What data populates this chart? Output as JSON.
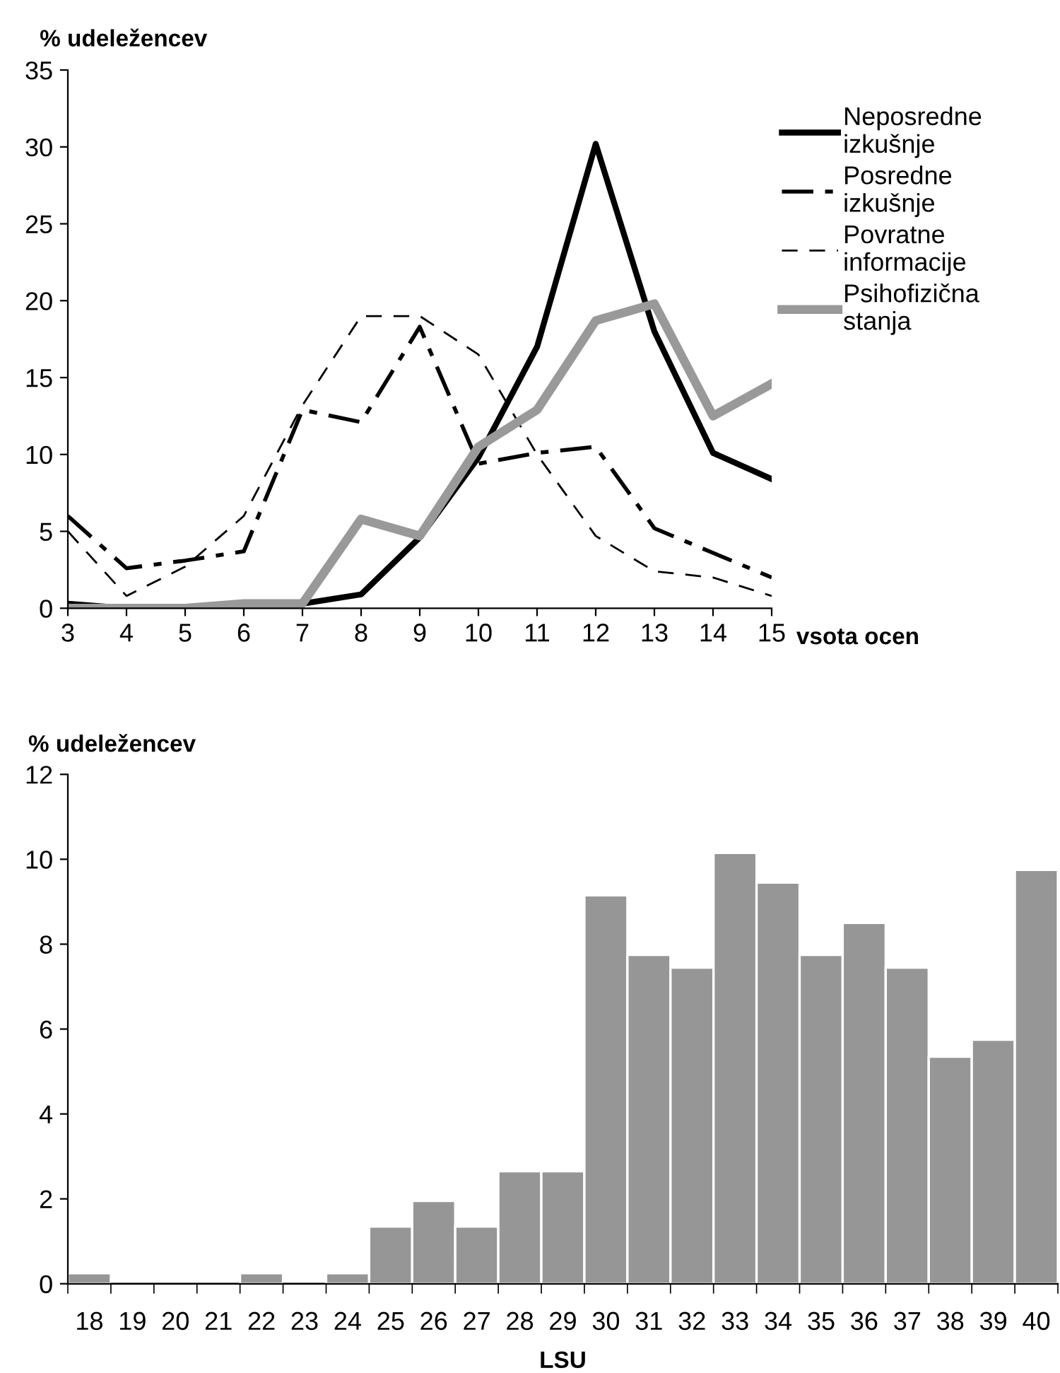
{
  "chart_data": [
    {
      "type": "line",
      "ylabel": "% udeležencev",
      "xlabel": "vsota ocen",
      "x": [
        3,
        4,
        5,
        6,
        7,
        8,
        9,
        10,
        11,
        12,
        13,
        14,
        15
      ],
      "xlim": [
        3,
        15
      ],
      "xticks": [
        3,
        4,
        5,
        6,
        7,
        8,
        9,
        10,
        11,
        12,
        13,
        14,
        15
      ],
      "ylim": [
        0,
        35
      ],
      "yticks": [
        0,
        5,
        10,
        15,
        20,
        25,
        30,
        35
      ],
      "grid": false,
      "legend": "right",
      "marker": "none",
      "series": [
        {
          "name": "Neposredne izkušnje",
          "color": "#000000",
          "line_style": "solid",
          "values": [
            0.3,
            0,
            0,
            0,
            0.3,
            0.9,
            4.6,
            9.8,
            17,
            30.2,
            18,
            10.1,
            8.4
          ]
        },
        {
          "name": "Posredne izkušnje",
          "color": "#000000",
          "line_style": "dashdot",
          "values": [
            6,
            2.6,
            3.1,
            3.7,
            12.9,
            12.1,
            18.3,
            9.4,
            10.1,
            10.5,
            5.2,
            3.6,
            2.0
          ]
        },
        {
          "name": "Povratne informacije",
          "color": "#000000",
          "line_style": "dashed",
          "values": [
            5.0,
            0.8,
            2.7,
            6.0,
            13.2,
            19.0,
            19.0,
            16.5,
            10.0,
            4.7,
            2.4,
            2.0,
            0.8
          ]
        },
        {
          "name": "Psihofizična stanja",
          "color": "#999999",
          "line_style": "solid",
          "values": [
            0,
            0,
            0,
            0.3,
            0.3,
            5.8,
            4.7,
            10.5,
            12.9,
            18.7,
            19.8,
            12.5,
            14.6
          ]
        }
      ]
    },
    {
      "type": "bar",
      "ylabel": "% udeležencev",
      "xlabel": "LSU",
      "categories": [
        "18",
        "19",
        "20",
        "21",
        "22",
        "23",
        "24",
        "25",
        "26",
        "27",
        "28",
        "29",
        "30",
        "31",
        "32",
        "33",
        "34",
        "35",
        "36",
        "37",
        "38",
        "39",
        "40"
      ],
      "ylim": [
        0,
        12
      ],
      "yticks": [
        0,
        2,
        4,
        6,
        8,
        10,
        12
      ],
      "grid": false,
      "color": "#969696",
      "values": [
        0.25,
        0,
        0,
        0,
        0.25,
        0,
        0.25,
        1.35,
        1.95,
        1.35,
        2.65,
        2.65,
        9.15,
        7.75,
        7.45,
        10.15,
        9.45,
        7.75,
        8.5,
        7.45,
        5.35,
        5.75,
        9.75
      ]
    }
  ]
}
